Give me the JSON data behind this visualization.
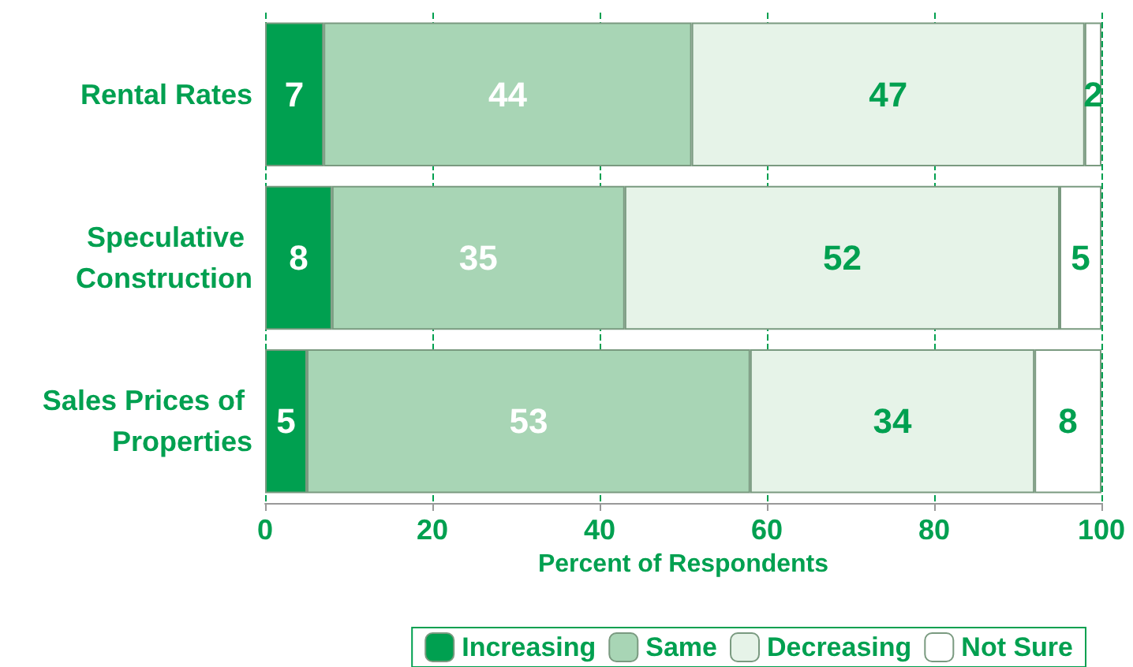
{
  "chart_data": {
    "type": "bar",
    "orientation": "horizontal",
    "stacked": true,
    "xlabel": "Percent of Respondents",
    "categories": [
      "Rental Rates",
      "Speculative Construction",
      "Sales Prices of Properties"
    ],
    "series": [
      {
        "name": "Increasing",
        "color": "#00a050",
        "values": [
          7,
          8,
          5
        ]
      },
      {
        "name": "Same",
        "color": "#a8d5b5",
        "values": [
          44,
          35,
          53
        ]
      },
      {
        "name": "Decreasing",
        "color": "#e6f3e8",
        "values": [
          47,
          52,
          34
        ]
      },
      {
        "name": "Not Sure",
        "color": "#ffffff",
        "values": [
          2,
          5,
          8
        ]
      }
    ],
    "xlim": [
      0,
      100
    ],
    "xticks": [
      0,
      20,
      40,
      60,
      80,
      100
    ],
    "grid": "x",
    "legend": "bottom",
    "data_labels": true
  }
}
